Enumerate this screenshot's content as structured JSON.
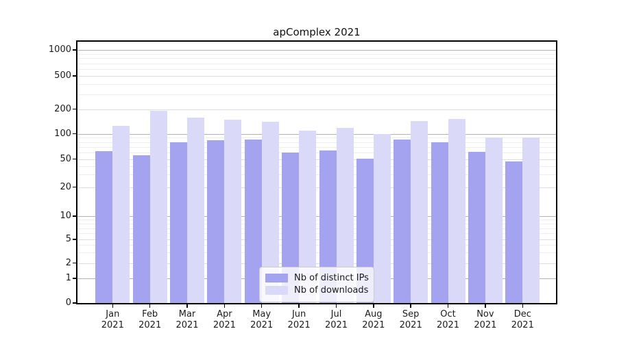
{
  "chart": {
    "title": "apComplex 2021"
  },
  "chart_data": {
    "type": "bar",
    "title": "apComplex 2021",
    "xlabel": "",
    "ylabel": "",
    "yscale": "symlog",
    "ylim": [
      0,
      1000
    ],
    "y_ticks": [
      0,
      1,
      2,
      5,
      10,
      20,
      50,
      100,
      200,
      500,
      1000
    ],
    "grid": "on",
    "legend_position": "lower center inside",
    "categories": [
      {
        "line1": "Jan",
        "line2": "2021"
      },
      {
        "line1": "Feb",
        "line2": "2021"
      },
      {
        "line1": "Mar",
        "line2": "2021"
      },
      {
        "line1": "Apr",
        "line2": "2021"
      },
      {
        "line1": "May",
        "line2": "2021"
      },
      {
        "line1": "Jun",
        "line2": "2021"
      },
      {
        "line1": "Jul",
        "line2": "2021"
      },
      {
        "line1": "Aug",
        "line2": "2021"
      },
      {
        "line1": "Sep",
        "line2": "2021"
      },
      {
        "line1": "Oct",
        "line2": "2021"
      },
      {
        "line1": "Nov",
        "line2": "2021"
      },
      {
        "line1": "Dec",
        "line2": "2021"
      }
    ],
    "series": [
      {
        "name": "Nb of distinct IPs",
        "color": "#a3a3ef",
        "values": [
          62,
          56,
          80,
          84,
          86,
          60,
          63,
          51,
          85,
          80,
          61,
          47
        ]
      },
      {
        "name": "Nb of downloads",
        "color": "#dadaf8",
        "values": [
          125,
          190,
          158,
          148,
          140,
          110,
          118,
          100,
          142,
          152,
          91,
          91
        ]
      }
    ]
  }
}
